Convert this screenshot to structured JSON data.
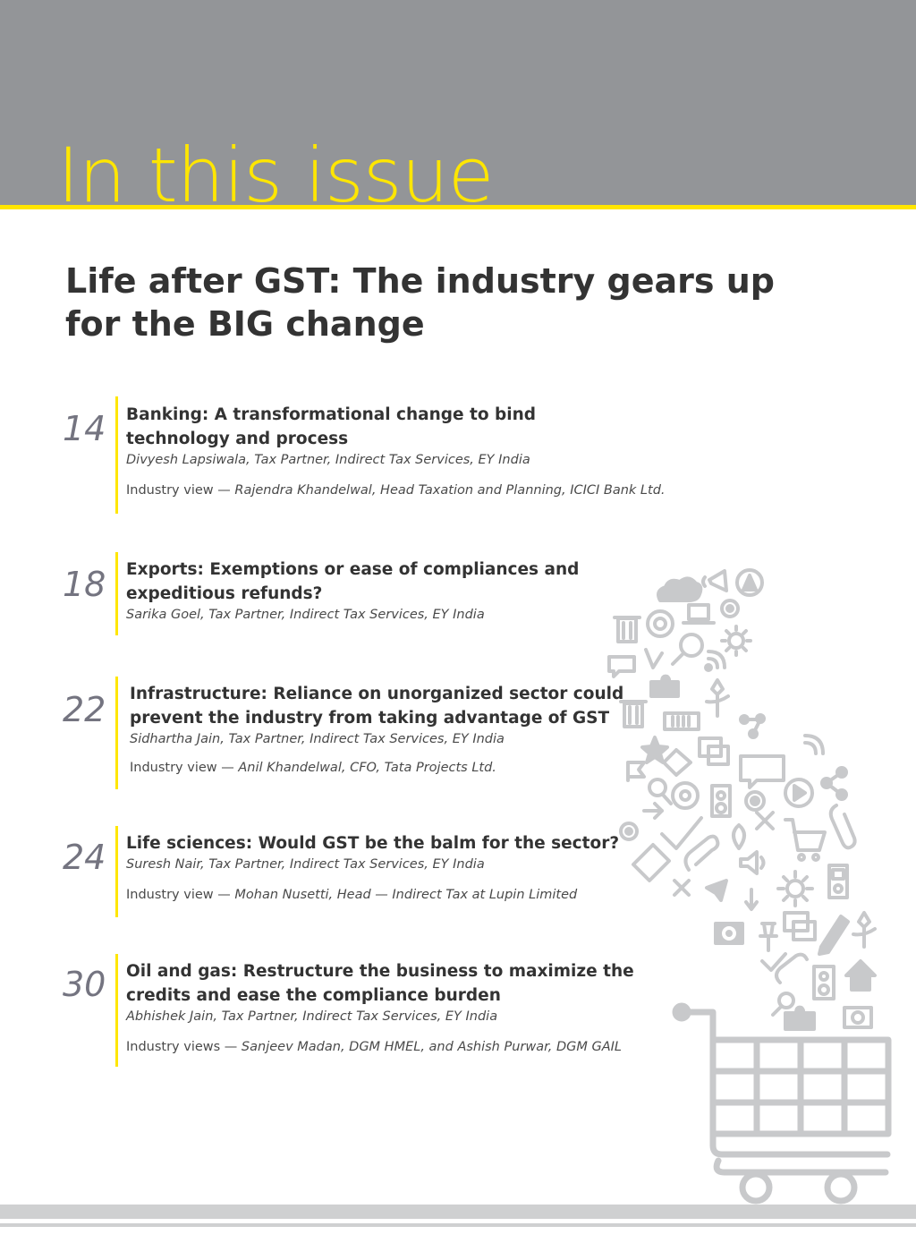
{
  "header": {
    "title": "In this issue"
  },
  "headline": "Life after GST: The industry gears up for the BIG change",
  "entries": [
    {
      "page": "14",
      "title": "Banking: A transformational change to bind technology and process",
      "author": "Divyesh Lapsiwala, Tax Partner, Indirect Tax Services, EY India",
      "view_label": "Industry view —",
      "view_people": "Rajendra Khandelwal, Head Taxation and Planning, ICICI Bank Ltd."
    },
    {
      "page": "18",
      "title": "Exports: Exemptions or ease of compliances and expeditious refunds?",
      "author": "Sarika Goel, Tax Partner, Indirect Tax Services, EY India"
    },
    {
      "page": "22",
      "title": "Infrastructure: Reliance on unorganized sector could prevent the industry from taking advantage of GST",
      "author": "Sidhartha Jain, Tax Partner, Indirect Tax Services, EY India",
      "view_label": "Industry view —",
      "view_people": "Anil Khandelwal, CFO, Tata Projects Ltd."
    },
    {
      "page": "24",
      "title": "Life sciences: Would GST be the balm for the sector?",
      "author": "Suresh Nair, Tax Partner, Indirect Tax Services, EY India",
      "view_label": "Industry view —",
      "view_people": "Mohan Nusetti, Head — Indirect Tax at Lupin Limited"
    },
    {
      "page": "30",
      "title": "Oil and gas: Restructure the business to maximize the credits and ease the compliance burden",
      "author": "Abhishek Jain, Tax Partner, Indirect Tax Services, EY India",
      "view_label": "Industry views —",
      "view_people": "Sanjeev Madan, DGM HMEL, and Ashish Purwar, DGM GAIL"
    }
  ],
  "colors": {
    "header_band": "#939598",
    "accent_yellow": "#ffe600",
    "text_dark": "#333333",
    "page_number": "#747480",
    "illustration_gray": "#c8c9cb"
  },
  "illustration": {
    "icons": [
      "cloud-icon",
      "megaphone-icon",
      "play-icon",
      "trash-icon",
      "at-sign-icon",
      "laptop-icon",
      "gear-icon",
      "magnifier-icon",
      "sun-icon",
      "chat-bubble-icon",
      "rss-icon",
      "puzzle-icon",
      "flower-icon",
      "battery-icon",
      "share-icon",
      "star-icon",
      "windows-icon",
      "flag-icon",
      "speaker-icon",
      "paperclip-icon",
      "checkmark-icon",
      "tag-icon",
      "location-pin-icon",
      "cross-icon",
      "shopping-basket-icon",
      "volume-icon",
      "cursor-icon",
      "pencil-icon",
      "push-pin-icon",
      "camera-icon",
      "house-icon",
      "mp3-player-icon",
      "shopping-cart-icon"
    ]
  }
}
